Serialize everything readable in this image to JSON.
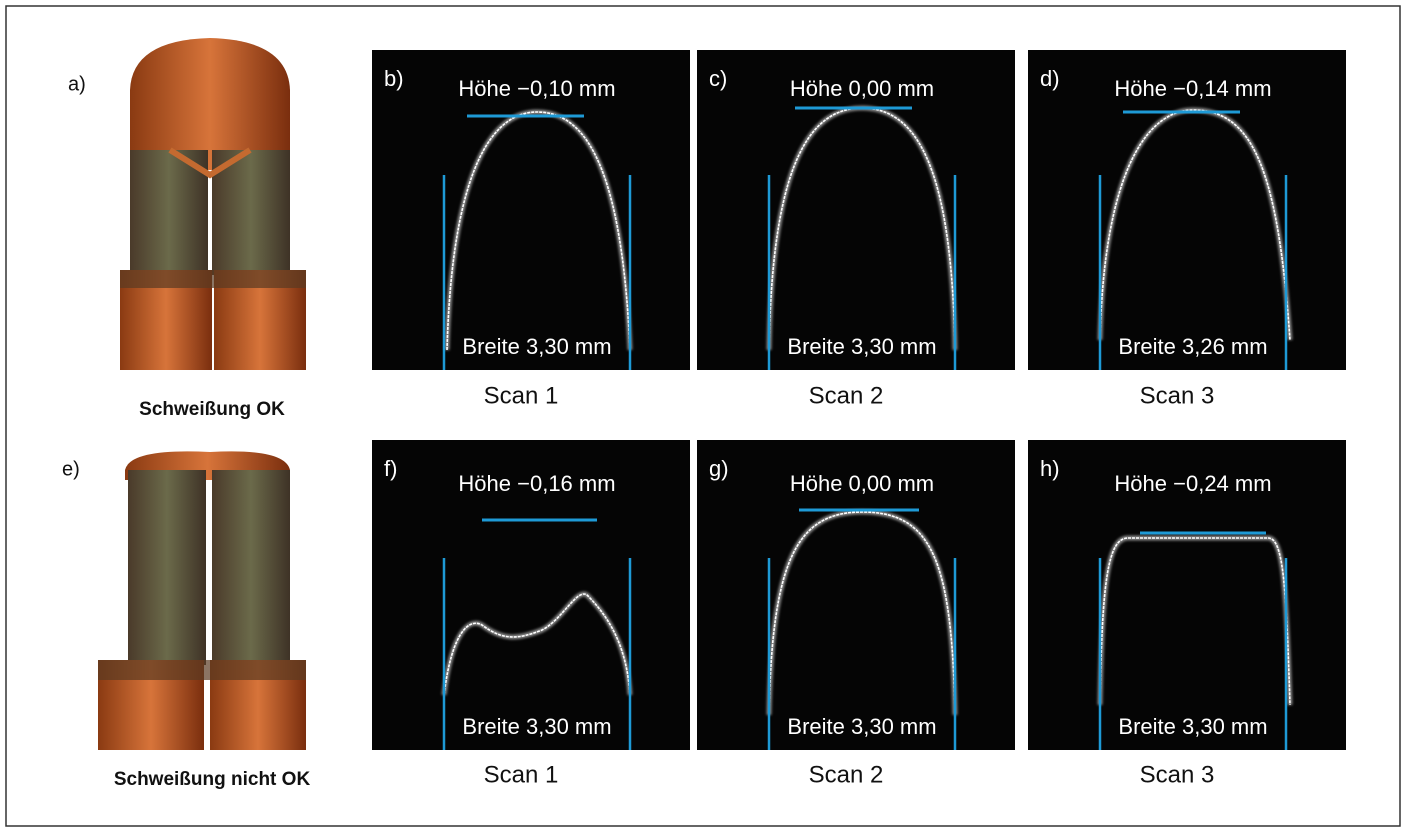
{
  "rows": [
    {
      "label": "a)",
      "caption": "Schweißung OK",
      "scans": [
        {
          "label": "b)",
          "height": "Höhe −0,10 mm",
          "width": "Breite 3,30 mm",
          "caption": "Scan 1"
        },
        {
          "label": "c)",
          "height": "Höhe 0,00 mm",
          "width": "Breite 3,30 mm",
          "caption": "Scan 2"
        },
        {
          "label": "d)",
          "height": "Höhe −0,14 mm",
          "width": "Breite 3,26 mm",
          "caption": "Scan 3"
        }
      ]
    },
    {
      "label": "e)",
      "caption": "Schweißung nicht OK",
      "scans": [
        {
          "label": "f)",
          "height": "Höhe −0,16 mm",
          "width": "Breite 3,30 mm",
          "caption": "Scan 1"
        },
        {
          "label": "g)",
          "height": "Höhe 0,00 mm",
          "width": "Breite 3,30 mm",
          "caption": "Scan 2"
        },
        {
          "label": "h)",
          "height": "Höhe −0,24 mm",
          "width": "Breite 3,30 mm",
          "caption": "Scan 3"
        }
      ]
    }
  ]
}
